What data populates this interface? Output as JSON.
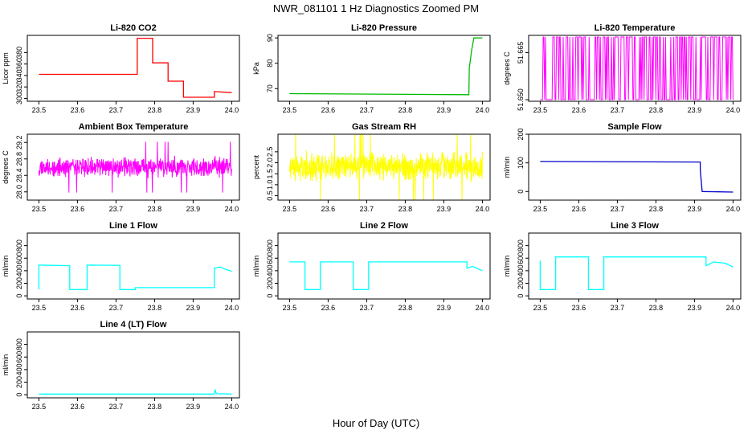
{
  "title": "NWR_081101  1 Hz Diagnostics Zoomed PM",
  "xlabel": "Hour of Day (UTC)",
  "chart_data": [
    {
      "type": "line",
      "title": "Li-820 CO2",
      "ylabel": "Licor ppm",
      "color": "#ff0000",
      "xlim": [
        23.47,
        24.02
      ],
      "ylim": [
        295,
        410
      ],
      "xticks": [
        "23.5",
        "23.6",
        "23.7",
        "23.8",
        "23.9",
        "24.0"
      ],
      "yticks": [
        "300",
        "320",
        "340",
        "360",
        "380"
      ],
      "trace": {
        "kind": "step",
        "points": [
          [
            23.5,
            342
          ],
          [
            23.755,
            342
          ],
          [
            23.755,
            405
          ],
          [
            23.795,
            405
          ],
          [
            23.795,
            362
          ],
          [
            23.835,
            362
          ],
          [
            23.835,
            330
          ],
          [
            23.875,
            330
          ],
          [
            23.875,
            302
          ],
          [
            23.955,
            302
          ],
          [
            23.955,
            312
          ],
          [
            24.0,
            310
          ]
        ]
      }
    },
    {
      "type": "line",
      "title": "Li-820 Pressure",
      "ylabel": "kPa",
      "color": "#00bb00",
      "xlim": [
        23.47,
        24.02
      ],
      "ylim": [
        65,
        91
      ],
      "xticks": [
        "23.5",
        "23.6",
        "23.7",
        "23.8",
        "23.9",
        "24.0"
      ],
      "yticks": [
        "70",
        "80",
        "90"
      ],
      "trace": {
        "kind": "step",
        "points": [
          [
            23.5,
            68
          ],
          [
            23.965,
            67.6
          ],
          [
            23.966,
            78
          ],
          [
            23.972,
            85
          ],
          [
            23.978,
            90
          ],
          [
            24.0,
            90
          ]
        ]
      }
    },
    {
      "type": "line",
      "title": "Li-820 Temperature",
      "ylabel": "degrees C",
      "color": "#ff00ff",
      "xlim": [
        23.47,
        24.02
      ],
      "ylim": [
        51.6495,
        51.6705
      ],
      "xticks": [
        "23.5",
        "23.6",
        "23.7",
        "23.8",
        "23.9",
        "24.0"
      ],
      "yticks": [
        "51.650",
        "51.665"
      ],
      "trace": {
        "kind": "flicker",
        "low": 51.65,
        "high": 51.67,
        "density": 0.45,
        "seed": 7
      }
    },
    {
      "type": "line",
      "title": "Ambient Box Temperature",
      "ylabel": "degrees C",
      "color": "#ff00ff",
      "xlim": [
        23.47,
        24.02
      ],
      "ylim": [
        27.8,
        29.4
      ],
      "xticks": [
        "23.5",
        "23.6",
        "23.7",
        "23.8",
        "23.9",
        "24.0"
      ],
      "yticks": [
        "28.0",
        "28.4",
        "28.8",
        "29.2"
      ],
      "trace": {
        "kind": "noise",
        "mean": 28.6,
        "amp": 0.28,
        "spikes": 0.02,
        "seed": 11
      }
    },
    {
      "type": "line",
      "title": "Gas Stream RH",
      "ylabel": "percent",
      "color": "#ffff00",
      "xlim": [
        23.47,
        24.02
      ],
      "ylim": [
        0.3,
        3.3
      ],
      "xticks": [
        "23.5",
        "23.6",
        "23.7",
        "23.8",
        "23.9",
        "24.0"
      ],
      "yticks": [
        "0.5",
        "1.0",
        "1.5",
        "2.0",
        "2.5"
      ],
      "trace": {
        "kind": "noise",
        "mean": 1.85,
        "amp": 0.75,
        "spikes": 0.03,
        "seed": 23
      }
    },
    {
      "type": "line",
      "title": "Sample Flow",
      "ylabel": "ml/min",
      "color": "#0000cc",
      "xlim": [
        23.47,
        24.02
      ],
      "ylim": [
        -30,
        200
      ],
      "xticks": [
        "23.5",
        "23.6",
        "23.7",
        "23.8",
        "23.9",
        "24.0"
      ],
      "yticks": [
        "0",
        "100",
        "200"
      ],
      "trace": {
        "kind": "step",
        "points": [
          [
            23.5,
            105
          ],
          [
            23.915,
            103
          ],
          [
            23.915,
            75
          ],
          [
            23.92,
            0
          ],
          [
            24.0,
            -2
          ]
        ]
      }
    },
    {
      "type": "line",
      "title": "Line 1 Flow",
      "ylabel": "ml/min",
      "color": "#00ffff",
      "xlim": [
        23.47,
        24.02
      ],
      "ylim": [
        -50,
        1000
      ],
      "xticks": [
        "23.5",
        "23.6",
        "23.7",
        "23.8",
        "23.9",
        "24.0"
      ],
      "yticks": [
        "0",
        "200",
        "400",
        "600",
        "800"
      ],
      "trace": {
        "kind": "step",
        "points": [
          [
            23.5,
            100
          ],
          [
            23.5,
            490
          ],
          [
            23.58,
            480
          ],
          [
            23.58,
            100
          ],
          [
            23.625,
            100
          ],
          [
            23.625,
            490
          ],
          [
            23.71,
            485
          ],
          [
            23.71,
            100
          ],
          [
            23.75,
            100
          ],
          [
            23.75,
            130
          ],
          [
            23.955,
            130
          ],
          [
            23.955,
            440
          ],
          [
            23.97,
            460
          ],
          [
            23.985,
            420
          ],
          [
            24.0,
            390
          ]
        ]
      }
    },
    {
      "type": "line",
      "title": "Line 2 Flow",
      "ylabel": "ml/min",
      "color": "#00ffff",
      "xlim": [
        23.47,
        24.02
      ],
      "ylim": [
        -50,
        1000
      ],
      "xticks": [
        "23.5",
        "23.6",
        "23.7",
        "23.8",
        "23.9",
        "24.0"
      ],
      "yticks": [
        "0",
        "200",
        "400",
        "600",
        "800"
      ],
      "trace": {
        "kind": "step",
        "points": [
          [
            23.5,
            540
          ],
          [
            23.54,
            540
          ],
          [
            23.54,
            100
          ],
          [
            23.58,
            100
          ],
          [
            23.58,
            540
          ],
          [
            23.665,
            540
          ],
          [
            23.665,
            100
          ],
          [
            23.705,
            100
          ],
          [
            23.705,
            540
          ],
          [
            23.96,
            540
          ],
          [
            23.96,
            440
          ],
          [
            23.975,
            470
          ],
          [
            24.0,
            400
          ]
        ]
      }
    },
    {
      "type": "line",
      "title": "Line 3 Flow",
      "ylabel": "ml/min",
      "color": "#00ffff",
      "xlim": [
        23.47,
        24.02
      ],
      "ylim": [
        -50,
        1000
      ],
      "xticks": [
        "23.5",
        "23.6",
        "23.7",
        "23.8",
        "23.9",
        "24.0"
      ],
      "yticks": [
        "0",
        "200",
        "400",
        "600",
        "800"
      ],
      "trace": {
        "kind": "step",
        "points": [
          [
            23.5,
            560
          ],
          [
            23.5,
            100
          ],
          [
            23.54,
            100
          ],
          [
            23.54,
            620
          ],
          [
            23.625,
            620
          ],
          [
            23.625,
            100
          ],
          [
            23.665,
            100
          ],
          [
            23.665,
            620
          ],
          [
            23.93,
            620
          ],
          [
            23.93,
            480
          ],
          [
            23.95,
            540
          ],
          [
            23.98,
            520
          ],
          [
            24.0,
            460
          ]
        ]
      }
    },
    {
      "type": "line",
      "title": "Line 4 (LT) Flow",
      "ylabel": "ml/min",
      "color": "#00ffff",
      "xlim": [
        23.47,
        24.02
      ],
      "ylim": [
        -50,
        1000
      ],
      "xticks": [
        "23.5",
        "23.6",
        "23.7",
        "23.8",
        "23.9",
        "24.0"
      ],
      "yticks": [
        "0",
        "200",
        "400",
        "600",
        "800"
      ],
      "trace": {
        "kind": "step",
        "points": [
          [
            23.5,
            10
          ],
          [
            23.955,
            10
          ],
          [
            23.957,
            80
          ],
          [
            23.96,
            15
          ],
          [
            24.0,
            10
          ]
        ]
      }
    }
  ]
}
